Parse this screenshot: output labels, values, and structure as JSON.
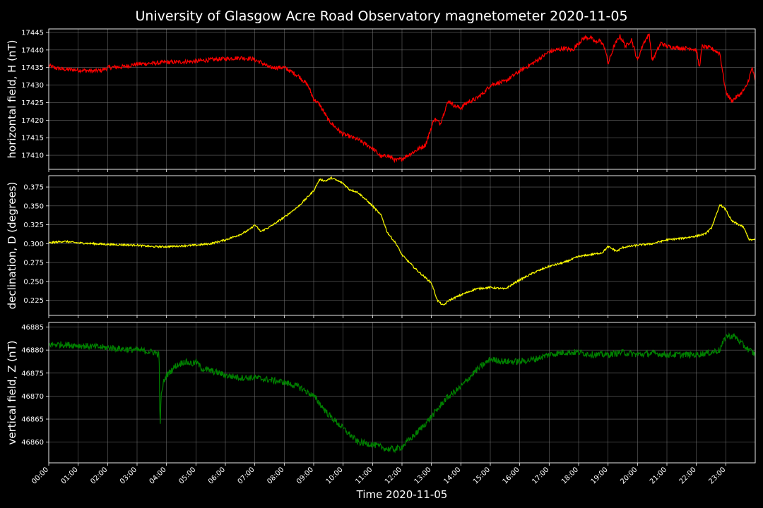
{
  "figure": {
    "title": "University of Glasgow Acre Road Observatory magnetometer 2020-11-05",
    "xlabel": "Time 2020-11-05",
    "background_color": "#000000",
    "grid_color": "#808080",
    "text_color": "#ffffff"
  },
  "chart_data": [
    {
      "type": "line",
      "ylabel": "horizontal field, H (nT)",
      "ylim": [
        17406,
        17446
      ],
      "yticks": [
        17410,
        17415,
        17420,
        17425,
        17430,
        17435,
        17440,
        17445
      ],
      "xlim_hours": [
        0,
        24
      ],
      "xticks": [
        "00:00",
        "01:00",
        "02:00",
        "03:00",
        "04:00",
        "05:00",
        "06:00",
        "07:00",
        "08:00",
        "09:00",
        "10:00",
        "11:00",
        "12:00",
        "13:00",
        "14:00",
        "15:00",
        "16:00",
        "17:00",
        "18:00",
        "19:00",
        "20:00",
        "21:00",
        "22:00",
        "23:00"
      ],
      "grid": true,
      "series": [
        {
          "color": "#ff0000",
          "noise": 0.6,
          "x": [
            0,
            0.25,
            0.5,
            1,
            1.5,
            1.8,
            2,
            2.5,
            3,
            3.5,
            4,
            4.5,
            5,
            5.5,
            6,
            6.5,
            6.9,
            7.2,
            7.5,
            8,
            8.5,
            8.8,
            9,
            9.2,
            9.5,
            9.8,
            10,
            10.5,
            11,
            11.3,
            11.5,
            11.8,
            12,
            12.2,
            12.5,
            12.8,
            13,
            13.1,
            13.3,
            13.5,
            13.6,
            13.8,
            14,
            14.2,
            14.5,
            14.8,
            15,
            15.2,
            15.5,
            16,
            16.5,
            17,
            17.5,
            17.8,
            18,
            18.2,
            18.4,
            18.6,
            18.7,
            18.9,
            19,
            19.2,
            19.4,
            19.6,
            19.8,
            20,
            20.2,
            20.4,
            20.5,
            20.8,
            21,
            21.5,
            21.8,
            22,
            22.1,
            22.2,
            22.5,
            22.8,
            23,
            23.2,
            23.5,
            23.7,
            23.9,
            24
          ],
          "y": [
            17435.5,
            17434.8,
            17434.5,
            17434.3,
            17434.0,
            17434.2,
            17435,
            17435.2,
            17436,
            17436.2,
            17436.5,
            17436.6,
            17436.8,
            17437.2,
            17437.5,
            17437.8,
            17437.5,
            17436.5,
            17435,
            17435,
            17432.5,
            17430,
            17426,
            17424.5,
            17420,
            17417.5,
            17416,
            17414.5,
            17412,
            17409.5,
            17410,
            17408.5,
            17409,
            17410,
            17411.5,
            17413,
            17418,
            17420.5,
            17419,
            17424,
            17425.5,
            17424,
            17423.5,
            17425,
            17426,
            17428,
            17430,
            17430.5,
            17431,
            17434,
            17436.5,
            17439.5,
            17440.5,
            17440,
            17442,
            17443.5,
            17443.5,
            17442,
            17443,
            17440.5,
            17436,
            17441,
            17444,
            17441,
            17443,
            17437,
            17442,
            17444.5,
            17437,
            17442,
            17441,
            17440.5,
            17440.5,
            17440,
            17435,
            17441,
            17440.5,
            17439,
            17428,
            17425.5,
            17427.5,
            17429.5,
            17435,
            17431
          ]
        }
      ]
    },
    {
      "type": "line",
      "ylabel": "declination, D (degrees)",
      "ylim": [
        0.205,
        0.39
      ],
      "yticks": [
        0.225,
        0.25,
        0.275,
        0.3,
        0.325,
        0.35,
        0.375
      ],
      "xlim_hours": [
        0,
        24
      ],
      "xticks": [
        "00:00",
        "01:00",
        "02:00",
        "03:00",
        "04:00",
        "05:00",
        "06:00",
        "07:00",
        "08:00",
        "09:00",
        "10:00",
        "11:00",
        "12:00",
        "13:00",
        "14:00",
        "15:00",
        "16:00",
        "17:00",
        "18:00",
        "19:00",
        "20:00",
        "21:00",
        "22:00",
        "23:00"
      ],
      "grid": true,
      "series": [
        {
          "color": "#ffff00",
          "noise": 0.0012,
          "x": [
            0,
            0.5,
            1,
            2,
            3,
            3.5,
            4,
            4.5,
            5,
            5.5,
            6,
            6.5,
            6.8,
            7,
            7.2,
            7.5,
            8,
            8.5,
            8.8,
            9,
            9.2,
            9.4,
            9.6,
            10,
            10.2,
            10.5,
            11,
            11.3,
            11.5,
            11.8,
            12,
            12.5,
            13,
            13.2,
            13.4,
            13.6,
            14,
            14.5,
            15,
            15.5,
            16,
            16.5,
            17,
            17.5,
            18,
            18.5,
            18.8,
            19,
            19.3,
            19.5,
            20,
            20.5,
            21,
            21.5,
            22,
            22.3,
            22.5,
            22.7,
            22.8,
            23,
            23.2,
            23.6,
            23.8,
            24
          ],
          "y": [
            0.301,
            0.303,
            0.301,
            0.299,
            0.298,
            0.296,
            0.296,
            0.297,
            0.298,
            0.3,
            0.305,
            0.312,
            0.318,
            0.325,
            0.316,
            0.322,
            0.335,
            0.35,
            0.362,
            0.37,
            0.385,
            0.383,
            0.387,
            0.38,
            0.372,
            0.368,
            0.35,
            0.337,
            0.315,
            0.3,
            0.285,
            0.265,
            0.248,
            0.225,
            0.218,
            0.225,
            0.232,
            0.24,
            0.242,
            0.24,
            0.252,
            0.262,
            0.27,
            0.275,
            0.283,
            0.286,
            0.288,
            0.296,
            0.29,
            0.295,
            0.298,
            0.3,
            0.305,
            0.307,
            0.31,
            0.313,
            0.32,
            0.34,
            0.352,
            0.345,
            0.33,
            0.322,
            0.305,
            0.305
          ]
        }
      ]
    },
    {
      "type": "line",
      "ylabel": "vertical field, Z (nT)",
      "ylim": [
        46855.5,
        46886
      ],
      "yticks": [
        46860,
        46865,
        46870,
        46875,
        46880,
        46885
      ],
      "xlim_hours": [
        0,
        24
      ],
      "xtick_labels": [
        "00:00",
        "01:00",
        "02:00",
        "03:00",
        "04:00",
        "05:00",
        "06:00",
        "07:00",
        "08:00",
        "09:00",
        "10:00",
        "11:00",
        "12:00",
        "13:00",
        "14:00",
        "15:00",
        "16:00",
        "17:00",
        "18:00",
        "19:00",
        "20:00",
        "21:00",
        "22:00",
        "23:00"
      ],
      "grid": true,
      "series": [
        {
          "color": "#008000",
          "noise": 0.7,
          "x": [
            0,
            0.5,
            1,
            2,
            3,
            3.6,
            3.75,
            3.78,
            3.82,
            3.9,
            4,
            4.3,
            4.6,
            4.9,
            5,
            5.2,
            5.5,
            5.8,
            6,
            6.5,
            7,
            7.5,
            8,
            8.5,
            9,
            9.5,
            10,
            10.5,
            11,
            11.5,
            11.8,
            12,
            12.5,
            13,
            13.5,
            14,
            14.5,
            14.8,
            15,
            15.5,
            16,
            16.5,
            17,
            17.5,
            18,
            18.5,
            19,
            19.5,
            20,
            20.5,
            21,
            21.5,
            22,
            22.5,
            22.8,
            23,
            23.3,
            23.6,
            24
          ],
          "y": [
            46881.2,
            46881.2,
            46881,
            46880.5,
            46880,
            46879.5,
            46879,
            46863,
            46870,
            46873,
            46874.5,
            46876.5,
            46877.5,
            46877,
            46877.5,
            46876,
            46875.5,
            46875,
            46874.5,
            46874,
            46874,
            46873.5,
            46873,
            46872,
            46870,
            46866,
            46863,
            46860,
            46859.5,
            46858.5,
            46858.5,
            46859,
            46862,
            46865.5,
            46869.5,
            46872,
            46875.5,
            46877,
            46878,
            46877.5,
            46877.5,
            46878,
            46879,
            46879.5,
            46879.5,
            46879,
            46879,
            46879.5,
            46879,
            46879.3,
            46879,
            46879,
            46879,
            46879.5,
            46880,
            46883,
            46883,
            46881,
            46879
          ]
        }
      ]
    }
  ]
}
